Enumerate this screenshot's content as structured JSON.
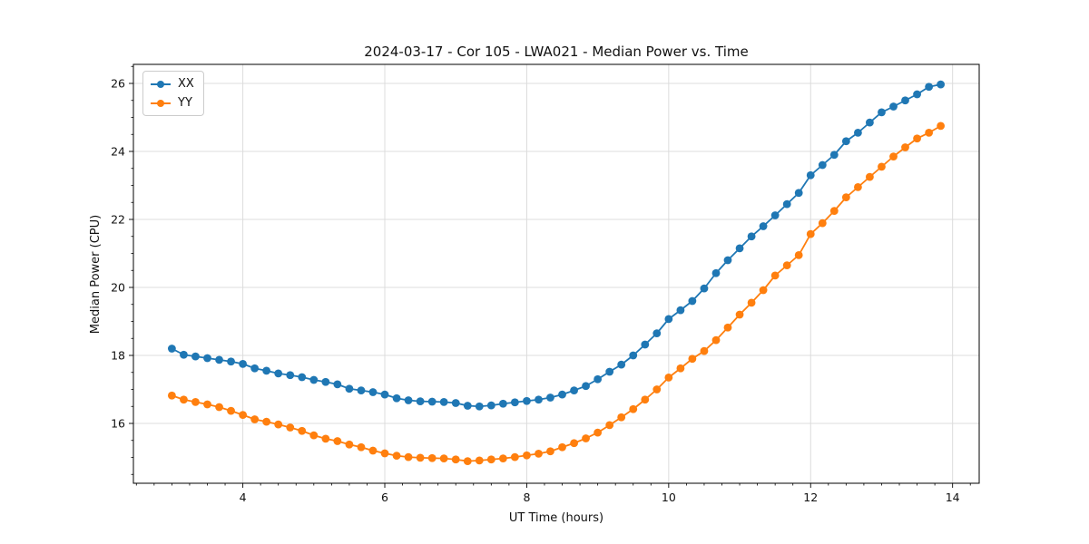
{
  "chart_data": {
    "type": "line",
    "title": "2024-03-17 - Cor 105 - LWA021 - Median Power vs. Time",
    "xlabel": "UT Time (hours)",
    "ylabel": "Median Power (CPU)",
    "xlim": [
      2.458,
      14.375
    ],
    "ylim": [
      14.24,
      26.56
    ],
    "xticks": [
      4,
      6,
      8,
      10,
      12,
      14
    ],
    "yticks": [
      16,
      18,
      20,
      22,
      24,
      26
    ],
    "minor_x_step": 0.25,
    "minor_y_step": 0.5,
    "grid": "major",
    "grid_color": "#dcdcdc",
    "legend_position": "upper-left",
    "x": [
      3.0,
      3.167,
      3.333,
      3.5,
      3.667,
      3.833,
      4.0,
      4.167,
      4.333,
      4.5,
      4.667,
      4.833,
      5.0,
      5.167,
      5.333,
      5.5,
      5.667,
      5.833,
      6.0,
      6.167,
      6.333,
      6.5,
      6.667,
      6.833,
      7.0,
      7.167,
      7.333,
      7.5,
      7.667,
      7.833,
      8.0,
      8.167,
      8.333,
      8.5,
      8.667,
      8.833,
      9.0,
      9.167,
      9.333,
      9.5,
      9.667,
      9.833,
      10.0,
      10.167,
      10.333,
      10.5,
      10.667,
      10.833,
      11.0,
      11.167,
      11.333,
      11.5,
      11.667,
      11.833,
      12.0,
      12.167,
      12.333,
      12.5,
      12.667,
      12.833,
      13.0,
      13.167,
      13.333,
      13.5,
      13.667,
      13.833
    ],
    "series": [
      {
        "name": "XX",
        "color": "#1f77b4",
        "values": [
          18.2,
          18.02,
          17.97,
          17.92,
          17.87,
          17.82,
          17.75,
          17.62,
          17.55,
          17.47,
          17.42,
          17.36,
          17.28,
          17.22,
          17.15,
          17.02,
          16.97,
          16.92,
          16.85,
          16.74,
          16.68,
          16.65,
          16.64,
          16.63,
          16.6,
          16.52,
          16.5,
          16.53,
          16.58,
          16.62,
          16.66,
          16.7,
          16.76,
          16.85,
          16.97,
          17.1,
          17.3,
          17.52,
          17.73,
          18.0,
          18.32,
          18.65,
          19.07,
          19.33,
          19.6,
          19.97,
          20.42,
          20.8,
          21.15,
          21.5,
          21.8,
          22.12,
          22.45,
          22.78,
          23.3,
          23.6,
          23.9,
          24.3,
          24.55,
          24.85,
          25.15,
          25.32,
          25.5,
          25.68,
          25.9,
          25.97
        ]
      },
      {
        "name": "YY",
        "color": "#ff7f0e",
        "values": [
          16.82,
          16.7,
          16.63,
          16.56,
          16.48,
          16.37,
          16.25,
          16.12,
          16.05,
          15.97,
          15.88,
          15.78,
          15.65,
          15.55,
          15.48,
          15.38,
          15.3,
          15.2,
          15.12,
          15.05,
          15.01,
          14.99,
          14.98,
          14.97,
          14.94,
          14.89,
          14.91,
          14.94,
          14.97,
          15.01,
          15.06,
          15.11,
          15.18,
          15.3,
          15.42,
          15.56,
          15.73,
          15.95,
          16.18,
          16.42,
          16.7,
          17.0,
          17.35,
          17.62,
          17.9,
          18.13,
          18.45,
          18.82,
          19.2,
          19.55,
          19.92,
          20.35,
          20.65,
          20.95,
          21.57,
          21.89,
          22.25,
          22.65,
          22.95,
          23.25,
          23.55,
          23.85,
          24.12,
          24.38,
          24.55,
          24.75
        ]
      }
    ]
  }
}
